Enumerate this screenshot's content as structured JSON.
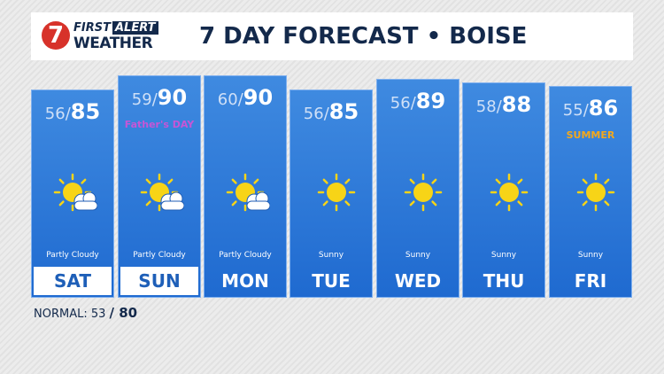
{
  "header": {
    "logo_number": "7",
    "logo_first": "FIRST",
    "logo_alert": "ALERT",
    "logo_weather": "WEATHER",
    "title": "7 DAY FORECAST • BOISE"
  },
  "days": [
    {
      "day": "SAT",
      "low": "56",
      "high": "85",
      "condition": "Partly Cloudy",
      "icon": "partly-cloudy",
      "selected": true,
      "top": 101
    },
    {
      "day": "SUN",
      "low": "59",
      "high": "90",
      "condition": "Partly Cloudy",
      "icon": "partly-cloudy",
      "selected": true,
      "badge": "Father's DAY",
      "top": 85
    },
    {
      "day": "MON",
      "low": "60",
      "high": "90",
      "condition": "Partly Cloudy",
      "icon": "partly-cloudy",
      "selected": false,
      "top": 85
    },
    {
      "day": "TUE",
      "low": "56",
      "high": "85",
      "condition": "Sunny",
      "icon": "sunny",
      "selected": false,
      "top": 101
    },
    {
      "day": "WED",
      "low": "56",
      "high": "89",
      "condition": "Sunny",
      "icon": "sunny",
      "selected": false,
      "top": 89
    },
    {
      "day": "THU",
      "low": "58",
      "high": "88",
      "condition": "Sunny",
      "icon": "sunny",
      "selected": false,
      "top": 93
    },
    {
      "day": "FRI",
      "low": "55",
      "high": "86",
      "condition": "Sunny",
      "icon": "sunny",
      "selected": false,
      "badge": "SUMMER",
      "top": 97
    }
  ],
  "normal": {
    "label": "NORMAL: 53",
    "high": "80"
  }
}
